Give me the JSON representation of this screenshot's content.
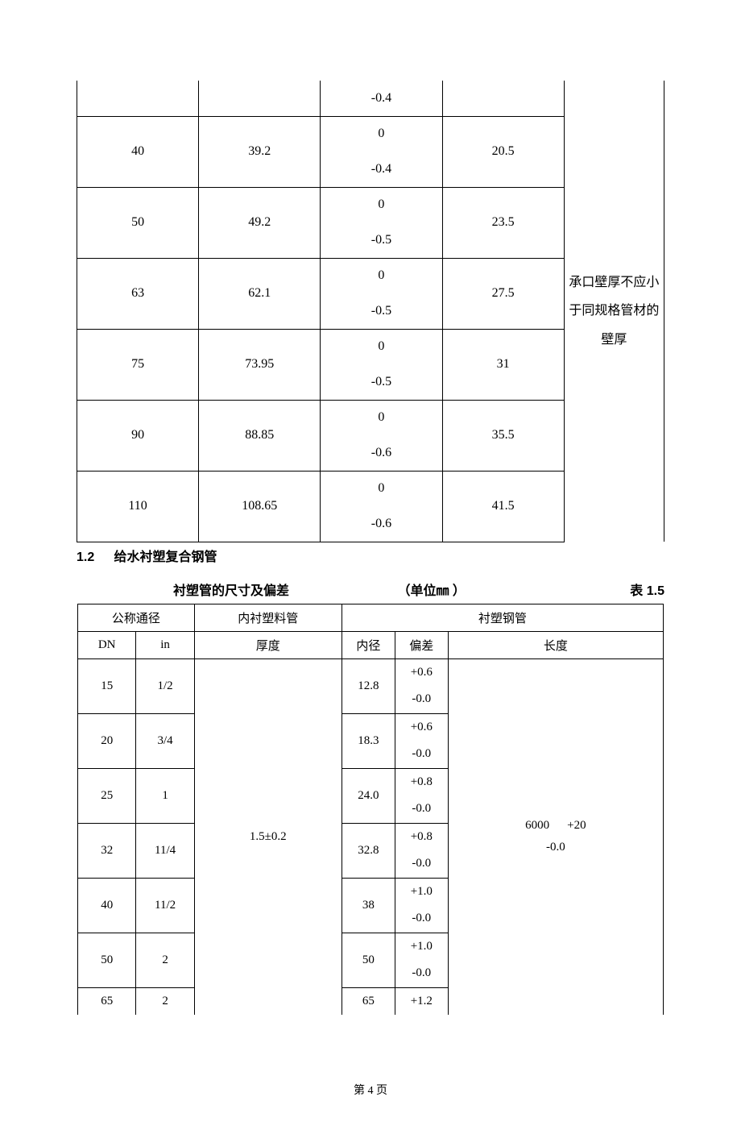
{
  "page_label": "第 4 页",
  "table1": {
    "note_text": "承口壁厚不应小于同规格管材的壁厚",
    "rows": [
      {
        "c1": "",
        "c2": "",
        "c3_top": "",
        "c3_bot": "-0.4",
        "c4": ""
      },
      {
        "c1": "40",
        "c2": "39.2",
        "c3_top": "0",
        "c3_bot": "-0.4",
        "c4": "20.5"
      },
      {
        "c1": "50",
        "c2": "49.2",
        "c3_top": "0",
        "c3_bot": "-0.5",
        "c4": "23.5"
      },
      {
        "c1": "63",
        "c2": "62.1",
        "c3_top": "0",
        "c3_bot": "-0.5",
        "c4": "27.5"
      },
      {
        "c1": "75",
        "c2": "73.95",
        "c3_top": "0",
        "c3_bot": "-0.5",
        "c4": "31"
      },
      {
        "c1": "90",
        "c2": "88.85",
        "c3_top": "0",
        "c3_bot": "-0.6",
        "c4": "35.5"
      },
      {
        "c1": "110",
        "c2": "108.65",
        "c3_top": "0",
        "c3_bot": "-0.6",
        "c4": "41.5"
      }
    ]
  },
  "section": {
    "number": "1.2",
    "title": "给水衬塑复合钢管"
  },
  "caption": {
    "title": "衬塑管的尺寸及偏差",
    "unit": "（单位㎜ ）",
    "label": "表 1.5"
  },
  "table2": {
    "head_group1": "公称通径",
    "head_group2": "内衬塑料管",
    "head_group3": "衬塑钢管",
    "sub_dn": "DN",
    "sub_in": "in",
    "sub_thk": "厚度",
    "sub_id": "内径",
    "sub_dev": "偏差",
    "sub_len": "长度",
    "thickness": "1.5±0.2",
    "length_main": "6000",
    "length_plus": "+20",
    "length_minus": "-0.0",
    "rows": [
      {
        "dn": "15",
        "in": "1/2",
        "id": "12.8",
        "dev_top": "+0.6",
        "dev_bot": "-0.0"
      },
      {
        "dn": "20",
        "in": "3/4",
        "id": "18.3",
        "dev_top": "+0.6",
        "dev_bot": "-0.0"
      },
      {
        "dn": "25",
        "in": "1",
        "id": "24.0",
        "dev_top": "+0.8",
        "dev_bot": "-0.0"
      },
      {
        "dn": "32",
        "in": "11/4",
        "id": "32.8",
        "dev_top": "+0.8",
        "dev_bot": "-0.0"
      },
      {
        "dn": "40",
        "in": "11/2",
        "id": "38",
        "dev_top": "+1.0",
        "dev_bot": "-0.0"
      },
      {
        "dn": "50",
        "in": "2",
        "id": "50",
        "dev_top": "+1.0",
        "dev_bot": "-0.0"
      },
      {
        "dn": "65",
        "in": "2",
        "id": "65",
        "dev_top": "+1.2",
        "dev_bot": ""
      }
    ]
  }
}
